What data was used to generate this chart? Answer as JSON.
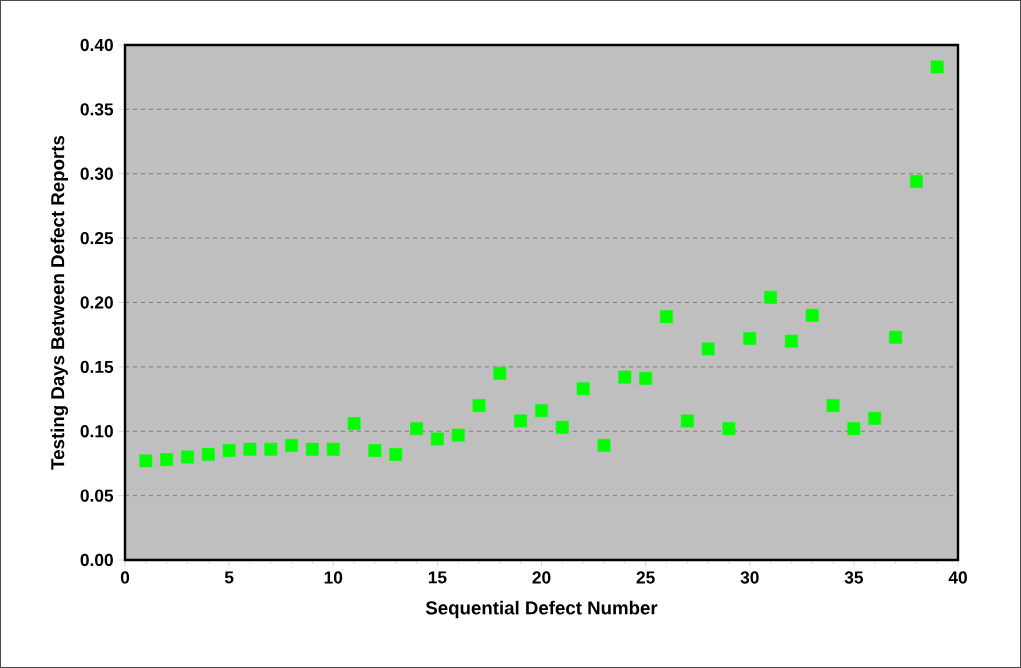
{
  "chart_data": {
    "type": "scatter",
    "xlabel": "Sequential Defect Number",
    "ylabel": "Testing Days Between Defect Reports",
    "x": [
      1,
      2,
      3,
      4,
      5,
      6,
      7,
      8,
      9,
      10,
      11,
      12,
      13,
      14,
      15,
      16,
      17,
      18,
      19,
      20,
      21,
      22,
      23,
      24,
      25,
      26,
      27,
      28,
      29,
      30,
      31,
      32,
      33,
      34,
      35,
      36,
      37,
      38,
      39
    ],
    "values": [
      0.077,
      0.078,
      0.08,
      0.082,
      0.085,
      0.086,
      0.086,
      0.089,
      0.086,
      0.086,
      0.106,
      0.085,
      0.082,
      0.102,
      0.094,
      0.097,
      0.12,
      0.145,
      0.108,
      0.116,
      0.103,
      0.133,
      0.089,
      0.142,
      0.141,
      0.189,
      0.108,
      0.164,
      0.102,
      0.172,
      0.204,
      0.17,
      0.19,
      0.12,
      0.102,
      0.11,
      0.173,
      0.294,
      0.383
    ],
    "color": "#00ff00",
    "marker": "square",
    "grid": "y",
    "xlim": [
      0,
      40
    ],
    "xticks": [
      0,
      5,
      10,
      15,
      20,
      25,
      30,
      35,
      40
    ],
    "ylim": [
      0,
      0.4
    ],
    "yticks": [
      {
        "value": 0,
        "label": "0.00"
      },
      {
        "value": 0.05,
        "label": "0.05"
      },
      {
        "value": 0.1,
        "label": "0.10"
      },
      {
        "value": 0.15,
        "label": "0.15"
      },
      {
        "value": 0.2,
        "label": "0.20"
      },
      {
        "value": 0.25,
        "label": "0.25"
      },
      {
        "value": 0.3,
        "label": "0.30"
      },
      {
        "value": 0.35,
        "label": "0.35"
      },
      {
        "value": 0.4,
        "label": "0.40"
      }
    ]
  }
}
